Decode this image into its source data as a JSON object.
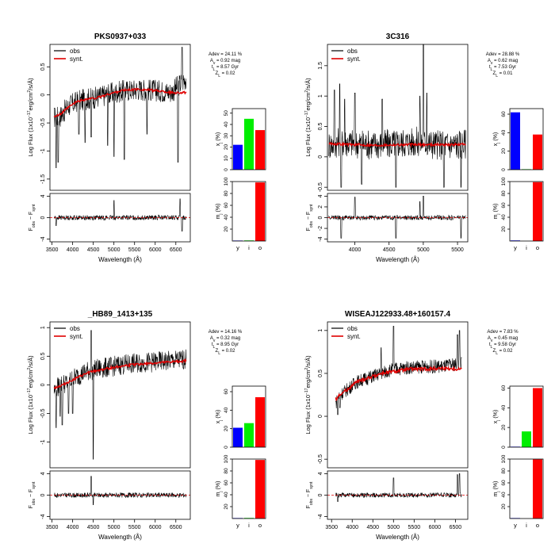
{
  "chart_data": [
    {
      "type": "line",
      "title": "PKS0937+033",
      "xlabel": "Wavelength (Å)",
      "ylabel": "Log Flux (1x10⁻¹⁷erg/cm²/s/Å)",
      "residual_ylabel": "F_obs − F_synt",
      "legend": [
        "obs",
        "synt."
      ],
      "legend_position": "top-left",
      "series_colors": {
        "obs": "#000000",
        "synt": "#e00000"
      },
      "xlim": [
        3450,
        6850
      ],
      "ylim": [
        -1.7,
        0.9
      ],
      "xticks": [
        3500,
        4000,
        4500,
        5000,
        5500,
        6000,
        6500
      ],
      "yticks": [
        -1.5,
        -1,
        -0.5,
        0,
        0.5
      ],
      "resid_ylim": [
        -4.5,
        4.5
      ],
      "resid_yticks": [
        -4,
        0,
        4
      ],
      "synt": {
        "x": [
          3550,
          3700,
          3900,
          4100,
          4300,
          4600,
          4900,
          5200,
          5600,
          6000,
          6400,
          6750
        ],
        "y": [
          -0.38,
          -0.35,
          -0.22,
          -0.12,
          -0.08,
          -0.05,
          0.02,
          0.08,
          0.1,
          0.08,
          0.04,
          0.04
        ]
      },
      "obs": {
        "base": [
          [
            3550,
            -0.4
          ],
          [
            3700,
            -0.38
          ],
          [
            3900,
            -0.2
          ],
          [
            4100,
            -0.12
          ],
          [
            4300,
            -0.08
          ],
          [
            4600,
            -0.04
          ],
          [
            4900,
            0.02
          ],
          [
            5200,
            0.07
          ],
          [
            5600,
            0.1
          ],
          [
            6000,
            0.08
          ],
          [
            6400,
            0.05
          ],
          [
            6750,
            0.3
          ]
        ],
        "noise": 0.2,
        "spikes": [
          [
            3600,
            -1.3
          ],
          [
            3650,
            -1.2
          ],
          [
            4150,
            -0.7
          ],
          [
            4300,
            -0.85
          ],
          [
            4450,
            -0.75
          ],
          [
            4850,
            -0.9
          ],
          [
            5000,
            -1.1
          ],
          [
            5250,
            -1.15
          ],
          [
            5800,
            -0.7
          ],
          [
            6550,
            -1.2
          ],
          [
            6650,
            0.85
          ]
        ]
      },
      "resid_spikes": [
        [
          5000,
          3.2
        ],
        [
          6600,
          3.5
        ],
        [
          6650,
          -2.5
        ],
        [
          3600,
          -1.5
        ]
      ],
      "stats": [
        "Adev = 24.11 %",
        "Av = 0.92 mag",
        "t_L = 8.57 Gyr",
        "Z_L = 0.02"
      ],
      "xj": {
        "ylabel": "x_j (%)",
        "yticks": [
          0,
          10,
          20,
          30,
          40,
          50
        ],
        "ymax": 54,
        "categories": [
          "y",
          "i",
          "o"
        ],
        "values": [
          22,
          45,
          35
        ]
      },
      "mj": {
        "ylabel": "m_j (%)",
        "yticks": [
          20,
          40,
          60,
          80,
          100
        ],
        "ymax": 100,
        "categories": [
          "y",
          "i",
          "o"
        ],
        "values": [
          0.5,
          1,
          98.5
        ]
      }
    },
    {
      "type": "line",
      "title": "3C316",
      "xlabel": "Wavelength (Å)",
      "ylabel": "Log Flux (1x10⁻¹⁷erg/cm²/s/Å)",
      "residual_ylabel": "F_obs − F_synt",
      "legend": [
        "obs",
        "synt."
      ],
      "legend_position": "top-left",
      "series_colors": {
        "obs": "#000000",
        "synt": "#e00000"
      },
      "xlim": [
        3600,
        5650
      ],
      "ylim": [
        -0.55,
        1.85
      ],
      "xticks": [
        4000,
        4500,
        5000,
        5500
      ],
      "yticks": [
        -0.5,
        0,
        0.5,
        1,
        1.5
      ],
      "resid_ylim": [
        -4.5,
        4.5
      ],
      "resid_yticks": [
        -4,
        -2,
        0,
        2,
        4
      ],
      "synt": {
        "x": [
          3620,
          3800,
          4000,
          4300,
          4600,
          4900,
          5200,
          5500,
          5620
        ],
        "y": [
          0.22,
          0.21,
          0.2,
          0.19,
          0.2,
          0.2,
          0.2,
          0.2,
          0.21
        ]
      },
      "obs": {
        "base": [
          [
            3620,
            0.2
          ],
          [
            3800,
            0.25
          ],
          [
            4000,
            0.22
          ],
          [
            4300,
            0.2
          ],
          [
            4600,
            0.22
          ],
          [
            4900,
            0.25
          ],
          [
            5200,
            0.2
          ],
          [
            5500,
            0.2
          ],
          [
            5620,
            0.22
          ]
        ],
        "noise": 0.25,
        "spikes": [
          [
            3700,
            1.1
          ],
          [
            3780,
            1.2
          ],
          [
            3850,
            0.95
          ],
          [
            4000,
            1.05
          ],
          [
            4400,
            0.95
          ],
          [
            4950,
            1.0
          ],
          [
            5000,
            1.85
          ],
          [
            5050,
            1.05
          ],
          [
            3800,
            -0.5
          ],
          [
            4100,
            -0.45
          ],
          [
            4600,
            -0.5
          ],
          [
            5300,
            -0.5
          ],
          [
            5550,
            -0.5
          ]
        ]
      },
      "resid_spikes": [
        [
          4000,
          3.8
        ],
        [
          4950,
          3.0
        ],
        [
          5000,
          4.0
        ],
        [
          3800,
          -3.8
        ],
        [
          4600,
          -3.8
        ],
        [
          5550,
          -3.8
        ]
      ],
      "stats": [
        "Adev = 28.88 %",
        "Av = 0.62 mag",
        "t_L = 7.53 Gyr",
        "Z_L = 0.01"
      ],
      "xj": {
        "ylabel": "x_j (%)",
        "yticks": [
          0,
          20,
          40,
          60
        ],
        "ymax": 66,
        "categories": [
          "y",
          "i",
          "o"
        ],
        "values": [
          62,
          0.5,
          38
        ]
      },
      "mj": {
        "ylabel": "m_j (%)",
        "yticks": [
          20,
          40,
          60,
          80,
          100
        ],
        "ymax": 100,
        "categories": [
          "y",
          "i",
          "o"
        ],
        "values": [
          1,
          0,
          99
        ]
      }
    },
    {
      "type": "line",
      "title": "_HB89_1413+135",
      "xlabel": "Wavelength (Å)",
      "ylabel": "Log Flux (1x10⁻¹⁷erg/cm²/s/Å)",
      "residual_ylabel": "F_obs − F_synt",
      "legend": [
        "obs",
        "synt."
      ],
      "legend_position": "top-left",
      "series_colors": {
        "obs": "#000000",
        "synt": "#e00000"
      },
      "xlim": [
        3450,
        6850
      ],
      "ylim": [
        -1.45,
        1.1
      ],
      "xticks": [
        3500,
        4000,
        4500,
        5000,
        5500,
        6000,
        6500
      ],
      "yticks": [
        -1,
        -0.5,
        0,
        0.5,
        1
      ],
      "resid_ylim": [
        -4.5,
        4.5
      ],
      "resid_yticks": [
        -4,
        0,
        4
      ],
      "synt": {
        "x": [
          3550,
          3700,
          3900,
          4100,
          4400,
          4800,
          5200,
          5600,
          6000,
          6400,
          6750
        ],
        "y": [
          -0.05,
          -0.02,
          0.05,
          0.12,
          0.22,
          0.28,
          0.33,
          0.36,
          0.38,
          0.4,
          0.42
        ]
      },
      "obs": {
        "base": [
          [
            3550,
            -0.1
          ],
          [
            3700,
            0.0
          ],
          [
            3900,
            0.05
          ],
          [
            4100,
            0.15
          ],
          [
            4400,
            0.25
          ],
          [
            4800,
            0.3
          ],
          [
            5200,
            0.35
          ],
          [
            5600,
            0.38
          ],
          [
            6000,
            0.4
          ],
          [
            6400,
            0.42
          ],
          [
            6750,
            0.45
          ]
        ],
        "noise": 0.18,
        "spikes": [
          [
            3600,
            -0.75
          ],
          [
            3700,
            -0.55
          ],
          [
            3900,
            -0.5
          ],
          [
            4000,
            -0.5
          ],
          [
            4450,
            0.95
          ],
          [
            4500,
            -1.3
          ],
          [
            3750,
            -0.7
          ]
        ]
      },
      "resid_spikes": [
        [
          4450,
          3.5
        ],
        [
          4500,
          -1.8
        ]
      ],
      "stats": [
        "Adev = 14.16 %",
        "Av = 0.32 mag",
        "t_L = 8.95 Gyr",
        "Z_L = 0.02"
      ],
      "xj": {
        "ylabel": "x_j (%)",
        "yticks": [
          0,
          20,
          40,
          60
        ],
        "ymax": 66,
        "categories": [
          "y",
          "i",
          "o"
        ],
        "values": [
          21,
          26,
          54
        ]
      },
      "mj": {
        "ylabel": "m_j (%)",
        "yticks": [
          20,
          40,
          60,
          80,
          100
        ],
        "ymax": 100,
        "categories": [
          "y",
          "i",
          "o"
        ],
        "values": [
          0.5,
          1,
          98.5
        ]
      }
    },
    {
      "type": "line",
      "title": "WISEAJ122933.48+160157.4",
      "xlabel": "Wavelength (Å)",
      "ylabel": "Log Flux (1x10⁻¹⁷erg/cm²/s/Å)",
      "residual_ylabel": "F_obs − F_synt",
      "legend": [
        "obs",
        "synt."
      ],
      "legend_position": "top-left",
      "series_colors": {
        "obs": "#000000",
        "synt": "#e00000"
      },
      "xlim": [
        3400,
        6800
      ],
      "ylim": [
        -0.6,
        1.1
      ],
      "xticks": [
        3500,
        4000,
        4500,
        5000,
        5500,
        6000,
        6500
      ],
      "yticks": [
        -0.5,
        0,
        0.5,
        1
      ],
      "resid_ylim": [
        -4.5,
        4.5
      ],
      "resid_yticks": [
        -4,
        0,
        4
      ],
      "synt": {
        "x": [
          3600,
          3700,
          3900,
          4100,
          4400,
          4700,
          5000,
          5400,
          5800,
          6200,
          6650
        ],
        "y": [
          0.2,
          0.25,
          0.32,
          0.4,
          0.45,
          0.5,
          0.52,
          0.55,
          0.55,
          0.56,
          0.55
        ]
      },
      "obs": {
        "base": [
          [
            3600,
            0.15
          ],
          [
            3700,
            0.25
          ],
          [
            3900,
            0.32
          ],
          [
            4100,
            0.4
          ],
          [
            4400,
            0.45
          ],
          [
            4700,
            0.5
          ],
          [
            5000,
            0.55
          ],
          [
            5400,
            0.57
          ],
          [
            5800,
            0.58
          ],
          [
            6200,
            0.58
          ],
          [
            6650,
            0.62
          ]
        ],
        "noise": 0.08,
        "spikes": [
          [
            5000,
            1.05
          ],
          [
            4700,
            0.8
          ],
          [
            6550,
            0.95
          ],
          [
            6600,
            1.0
          ],
          [
            3650,
            0.02
          ],
          [
            3700,
            0.1
          ]
        ]
      },
      "resid_spikes": [
        [
          5000,
          3.2
        ],
        [
          6550,
          3.8
        ],
        [
          6600,
          4.0
        ],
        [
          3650,
          -1.2
        ]
      ],
      "stats": [
        "Adev = 7.83 %",
        "Av = 0.45 mag",
        "t_L = 9.58 Gyr",
        "Z_L = 0.02"
      ],
      "xj": {
        "ylabel": "x_j (%)",
        "yticks": [
          0,
          20,
          40,
          60
        ],
        "ymax": 62,
        "categories": [
          "y",
          "i",
          "o"
        ],
        "values": [
          0.5,
          16,
          60
        ]
      },
      "mj": {
        "ylabel": "m_j (%)",
        "yticks": [
          20,
          40,
          60,
          80,
          100
        ],
        "ymax": 100,
        "categories": [
          "y",
          "i",
          "o"
        ],
        "values": [
          0.5,
          0,
          99.5
        ]
      }
    }
  ],
  "bar_colors": [
    "#0000ff",
    "#00ee00",
    "#ff0000"
  ]
}
